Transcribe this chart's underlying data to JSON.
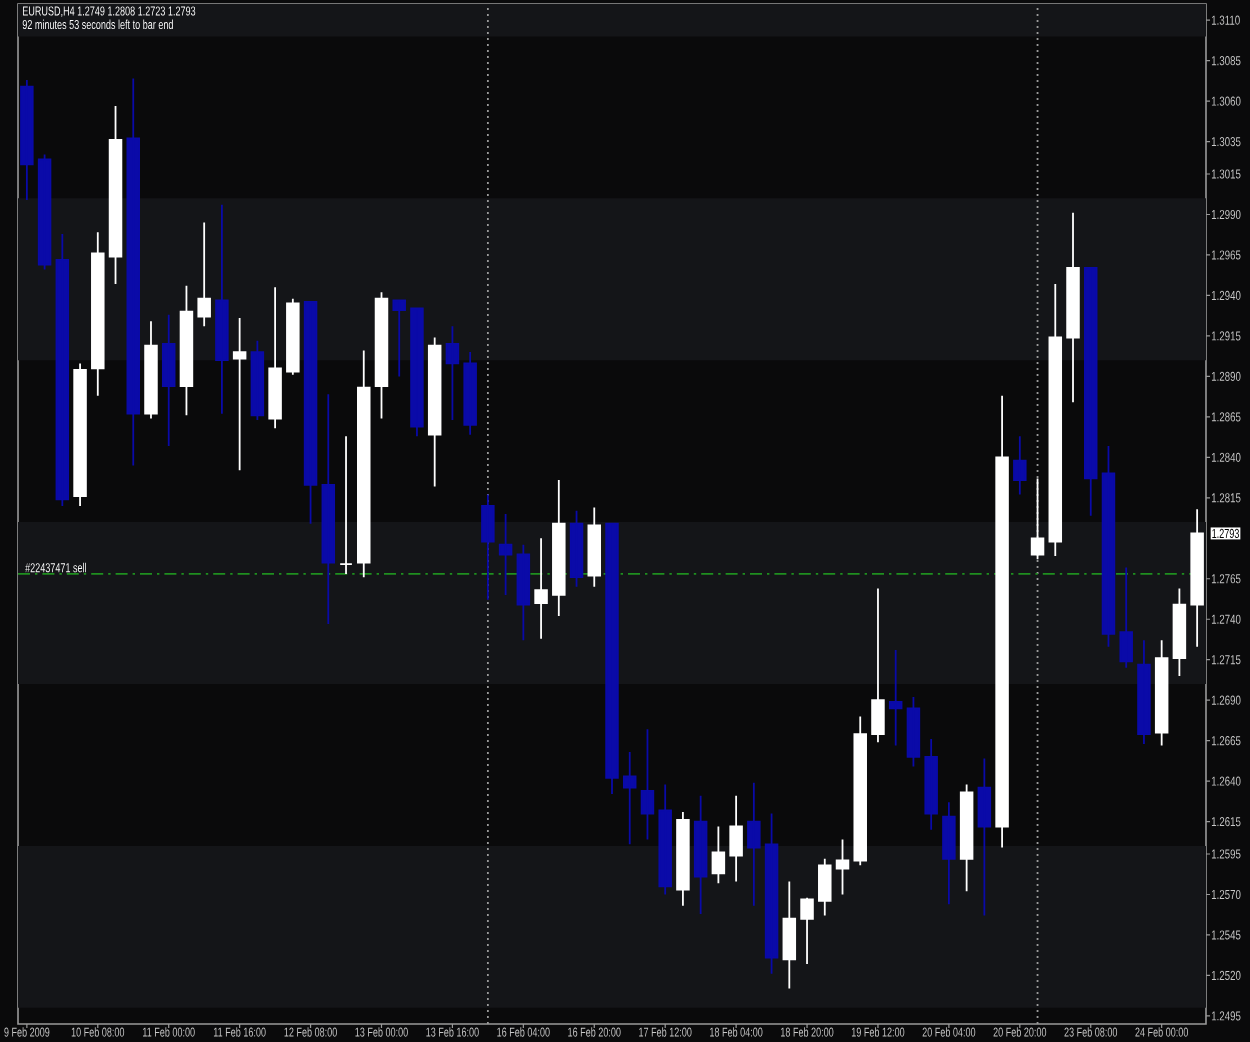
{
  "chart_data": {
    "type": "candlestick",
    "title": "EURUSD,H4 1.2749 1.2808 1.2723 1.2793",
    "subtitle": "92 minutes 53 seconds left to bar end",
    "categories": [
      "9 Feb 2009",
      null,
      null,
      null,
      "10 Feb 08:00",
      null,
      null,
      null,
      "11 Feb 00:00",
      null,
      null,
      null,
      "11 Feb 16:00",
      null,
      null,
      null,
      "12 Feb 08:00",
      null,
      null,
      null,
      "13 Feb 00:00",
      null,
      null,
      null,
      "13 Feb 16:00",
      null,
      null,
      null,
      "16 Feb 04:00",
      null,
      null,
      null,
      "16 Feb 20:00",
      null,
      null,
      null,
      "17 Feb 12:00",
      null,
      null,
      null,
      "18 Feb 04:00",
      null,
      null,
      null,
      "18 Feb 20:00",
      null,
      null,
      null,
      "19 Feb 12:00",
      null,
      null,
      null,
      "20 Feb 04:00",
      null,
      null,
      null,
      "20 Feb 20:00",
      null,
      null,
      null,
      "23 Feb 08:00",
      null,
      null,
      null,
      "24 Feb 00:00",
      null,
      null
    ],
    "ohlc": [
      [
        1.3069,
        1.3073,
        1.2999,
        1.3021
      ],
      [
        1.3024,
        1.3027,
        1.2956,
        1.2959
      ],
      [
        1.2962,
        1.2978,
        1.281,
        1.2814
      ],
      [
        1.2816,
        1.2898,
        1.281,
        1.2894
      ],
      [
        1.2895,
        1.2979,
        1.2878,
        1.2966
      ],
      [
        1.2964,
        1.3057,
        1.2947,
        1.3036
      ],
      [
        1.3037,
        1.3074,
        1.2835,
        1.2867
      ],
      [
        1.2867,
        1.2924,
        1.2864,
        1.2909
      ],
      [
        1.291,
        1.2928,
        1.2847,
        1.2884
      ],
      [
        1.2884,
        1.2946,
        1.2866,
        1.293
      ],
      [
        1.2927,
        1.2985,
        1.2921,
        1.2938
      ],
      [
        1.2937,
        1.2996,
        1.2867,
        1.29
      ],
      [
        1.2901,
        1.2926,
        1.2832,
        1.2905
      ],
      [
        1.2905,
        1.2912,
        1.2863,
        1.2866
      ],
      [
        1.2864,
        1.2945,
        1.2858,
        1.2895
      ],
      [
        1.2893,
        1.2938,
        1.2891,
        1.2935
      ],
      [
        1.2936,
        1.2936,
        1.2799,
        1.2823
      ],
      [
        1.2823,
        1.2879,
        1.2737,
        1.2775
      ],
      [
        1.2774,
        1.2853,
        1.2768,
        1.2774
      ],
      [
        1.2775,
        1.2906,
        1.2766,
        1.2883
      ],
      [
        1.2884,
        1.2942,
        1.2864,
        1.2938
      ],
      [
        1.2937,
        1.2937,
        1.289,
        1.2931
      ],
      [
        1.2932,
        1.2932,
        1.2853,
        1.2859
      ],
      [
        1.2854,
        1.2914,
        1.2822,
        1.2909
      ],
      [
        1.291,
        1.2921,
        1.2863,
        1.2898
      ],
      [
        1.2898,
        1.2905,
        1.2854,
        1.286
      ],
      [
        1.281,
        1.2817,
        1.2752,
        1.2788
      ],
      [
        1.2786,
        1.2805,
        1.2755,
        1.278
      ],
      [
        1.278,
        1.2786,
        1.2727,
        1.2749
      ],
      [
        1.275,
        1.279,
        1.2728,
        1.2758
      ],
      [
        1.2755,
        1.2826,
        1.2742,
        1.2799
      ],
      [
        1.2799,
        1.2807,
        1.276,
        1.2766
      ],
      [
        1.2767,
        1.2809,
        1.276,
        1.2798
      ],
      [
        1.2799,
        1.2799,
        1.2632,
        1.2642
      ],
      [
        1.2643,
        1.2658,
        1.2601,
        1.2636
      ],
      [
        1.2634,
        1.2672,
        1.2604,
        1.262
      ],
      [
        1.2622,
        1.2638,
        1.257,
        1.2575
      ],
      [
        1.2573,
        1.2621,
        1.2563,
        1.2616
      ],
      [
        1.2615,
        1.2631,
        1.2558,
        1.2581
      ],
      [
        1.2583,
        1.2612,
        1.2577,
        1.2596
      ],
      [
        1.2594,
        1.2631,
        1.2578,
        1.2612
      ],
      [
        1.2615,
        1.2639,
        1.2563,
        1.2599
      ],
      [
        1.2601,
        1.262,
        1.2521,
        1.2531
      ],
      [
        1.253,
        1.2578,
        1.2512,
        1.2555
      ],
      [
        1.2555,
        1.2568,
        1.2527,
        1.2567
      ],
      [
        1.2566,
        1.2592,
        1.2557,
        1.2588
      ],
      [
        1.2586,
        1.2604,
        1.257,
        1.2591
      ],
      [
        1.2591,
        1.268,
        1.2588,
        1.2669
      ],
      [
        1.2669,
        1.2759,
        1.2664,
        1.269
      ],
      [
        1.2689,
        1.2721,
        1.2662,
        1.2685
      ],
      [
        1.2685,
        1.2692,
        1.2649,
        1.2655
      ],
      [
        1.2655,
        1.2666,
        1.261,
        1.262
      ],
      [
        1.2618,
        1.2627,
        1.2564,
        1.2592
      ],
      [
        1.2592,
        1.2638,
        1.2572,
        1.2633
      ],
      [
        1.2636,
        1.2654,
        1.2557,
        1.2612
      ],
      [
        1.2612,
        1.2878,
        1.2599,
        1.284
      ],
      [
        1.2838,
        1.2853,
        1.2817,
        1.2826
      ],
      [
        1.278,
        1.2827,
        1.2777,
        1.279
      ],
      [
        1.2788,
        1.2947,
        1.2779,
        1.2914
      ],
      [
        1.2914,
        1.2991,
        1.2874,
        1.2957
      ],
      [
        1.2957,
        1.2957,
        1.2804,
        1.2827
      ],
      [
        1.283,
        1.2847,
        1.2723,
        1.2731
      ],
      [
        1.2732,
        1.2772,
        1.271,
        1.2714
      ],
      [
        1.2712,
        1.2727,
        1.2663,
        1.2669
      ],
      [
        1.267,
        1.2727,
        1.2662,
        1.2716
      ],
      [
        1.2716,
        1.2759,
        1.2705,
        1.2749
      ],
      [
        1.2749,
        1.2808,
        1.2723,
        1.2793
      ]
    ],
    "colors": [
      "#0a0aa8",
      "#0a0aa8",
      "#0a0aa8",
      "#ffffff",
      "#ffffff",
      "#ffffff",
      "#0a0aa8",
      "#ffffff",
      "#0a0aa8",
      "#ffffff",
      "#ffffff",
      "#0a0aa8",
      "#ffffff",
      "#0a0aa8",
      "#ffffff",
      "#ffffff",
      "#0a0aa8",
      "#0a0aa8",
      "#ffffff",
      "#ffffff",
      "#ffffff",
      "#0a0aa8",
      "#0a0aa8",
      "#ffffff",
      "#0a0aa8",
      "#0a0aa8",
      "#0a0aa8",
      "#0a0aa8",
      "#0a0aa8",
      "#ffffff",
      "#ffffff",
      "#0a0aa8",
      "#ffffff",
      "#0a0aa8",
      "#0a0aa8",
      "#0a0aa8",
      "#0a0aa8",
      "#ffffff",
      "#0a0aa8",
      "#ffffff",
      "#ffffff",
      "#0a0aa8",
      "#0a0aa8",
      "#ffffff",
      "#ffffff",
      "#ffffff",
      "#ffffff",
      "#ffffff",
      "#ffffff",
      "#0a0aa8",
      "#0a0aa8",
      "#0a0aa8",
      "#0a0aa8",
      "#ffffff",
      "#0a0aa8",
      "#ffffff",
      "#0a0aa8",
      "#ffffff",
      "#ffffff",
      "#ffffff",
      "#0a0aa8",
      "#0a0aa8",
      "#0a0aa8",
      "#0a0aa8",
      "#ffffff",
      "#ffffff",
      "#ffffff"
    ],
    "ylim": [
      1.249,
      1.312
    ],
    "yticks": [
      {
        "value": 1.311,
        "label": "1.3110"
      },
      1.3085,
      {
        "value": 1.306,
        "label": "1.3060"
      },
      1.3035,
      1.3015,
      {
        "value": 1.299,
        "label": "1.2990"
      },
      1.2965,
      {
        "value": 1.294,
        "label": "1.2940"
      },
      1.2915,
      {
        "value": 1.289,
        "label": "1.2890"
      },
      1.2865,
      {
        "value": 1.284,
        "label": "1.2840"
      },
      1.2815,
      1.2765,
      {
        "value": 1.274,
        "label": "1.2740"
      },
      1.2715,
      {
        "value": 1.269,
        "label": "1.2690"
      },
      1.2665,
      {
        "value": 1.264,
        "label": "1.2640"
      },
      1.2615,
      1.2595,
      {
        "value": 1.257,
        "label": "1.2570"
      },
      1.2545,
      {
        "value": 1.252,
        "label": "1.2520"
      },
      1.2495
    ],
    "bands": [
      {
        "axis": "y",
        "from": 1.31,
        "to": 1.312,
        "color": "#141518"
      },
      {
        "axis": "y",
        "from": 1.29,
        "to": 1.3,
        "color": "#141518"
      },
      {
        "axis": "y",
        "from": 1.27,
        "to": 1.28,
        "color": "#141518"
      },
      {
        "axis": "y",
        "from": 1.25,
        "to": 1.26,
        "color": "#141518"
      }
    ],
    "ref_lines": [
      {
        "axis": "y",
        "value": 1.2768,
        "label": "#22437471 sell",
        "color": "#1f8f1f",
        "line_style": "dashdot"
      }
    ],
    "annotations": [
      "1.2793"
    ]
  }
}
